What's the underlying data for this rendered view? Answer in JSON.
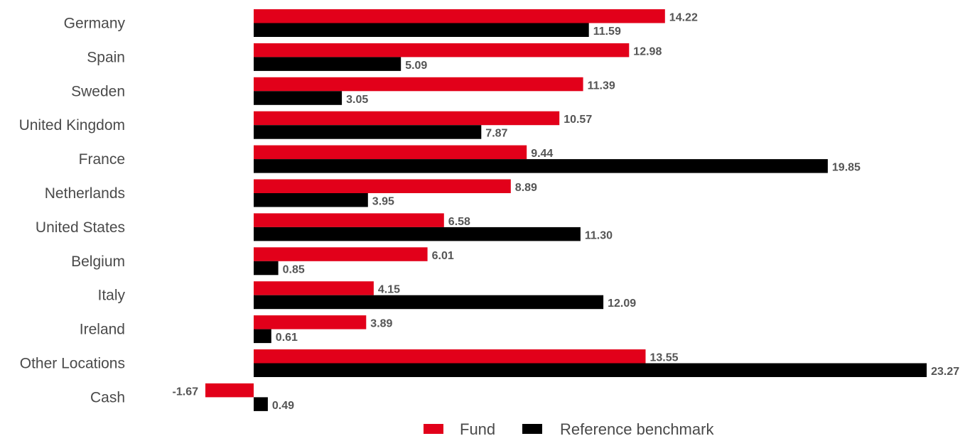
{
  "colors": {
    "fund": "#e2001a",
    "benchmark": "#000000",
    "label_text": "#4a4a4a",
    "value_text": "#555555"
  },
  "chart_data": {
    "type": "bar",
    "orientation": "horizontal",
    "categories": [
      "Germany",
      "Spain",
      "Sweden",
      "United Kingdom",
      "France",
      "Netherlands",
      "United States",
      "Belgium",
      "Italy",
      "Ireland",
      "Other Locations",
      "Cash"
    ],
    "series": [
      {
        "name": "Fund",
        "values": [
          14.22,
          12.98,
          11.39,
          10.57,
          9.44,
          8.89,
          6.58,
          6.01,
          4.15,
          3.89,
          13.55,
          -1.67
        ],
        "labels": [
          "14.22",
          "12.98",
          "11.39",
          "10.57",
          "9.44",
          "8.89",
          "6.58",
          "6.01",
          "4.15",
          "3.89",
          "13.55",
          "-1.67"
        ]
      },
      {
        "name": "Reference benchmark",
        "values": [
          11.59,
          5.09,
          3.05,
          7.87,
          19.85,
          3.95,
          11.3,
          0.85,
          12.09,
          0.61,
          23.27,
          0.49
        ],
        "labels": [
          "11.59",
          "5.09",
          "3.05",
          "7.87",
          "19.85",
          "3.95",
          "11.30",
          "0.85",
          "12.09",
          "0.61",
          "23.27",
          "0.49"
        ]
      }
    ],
    "xlim": [
      -1.67,
      23.27
    ],
    "grid": false,
    "legend": "bottom-center"
  }
}
